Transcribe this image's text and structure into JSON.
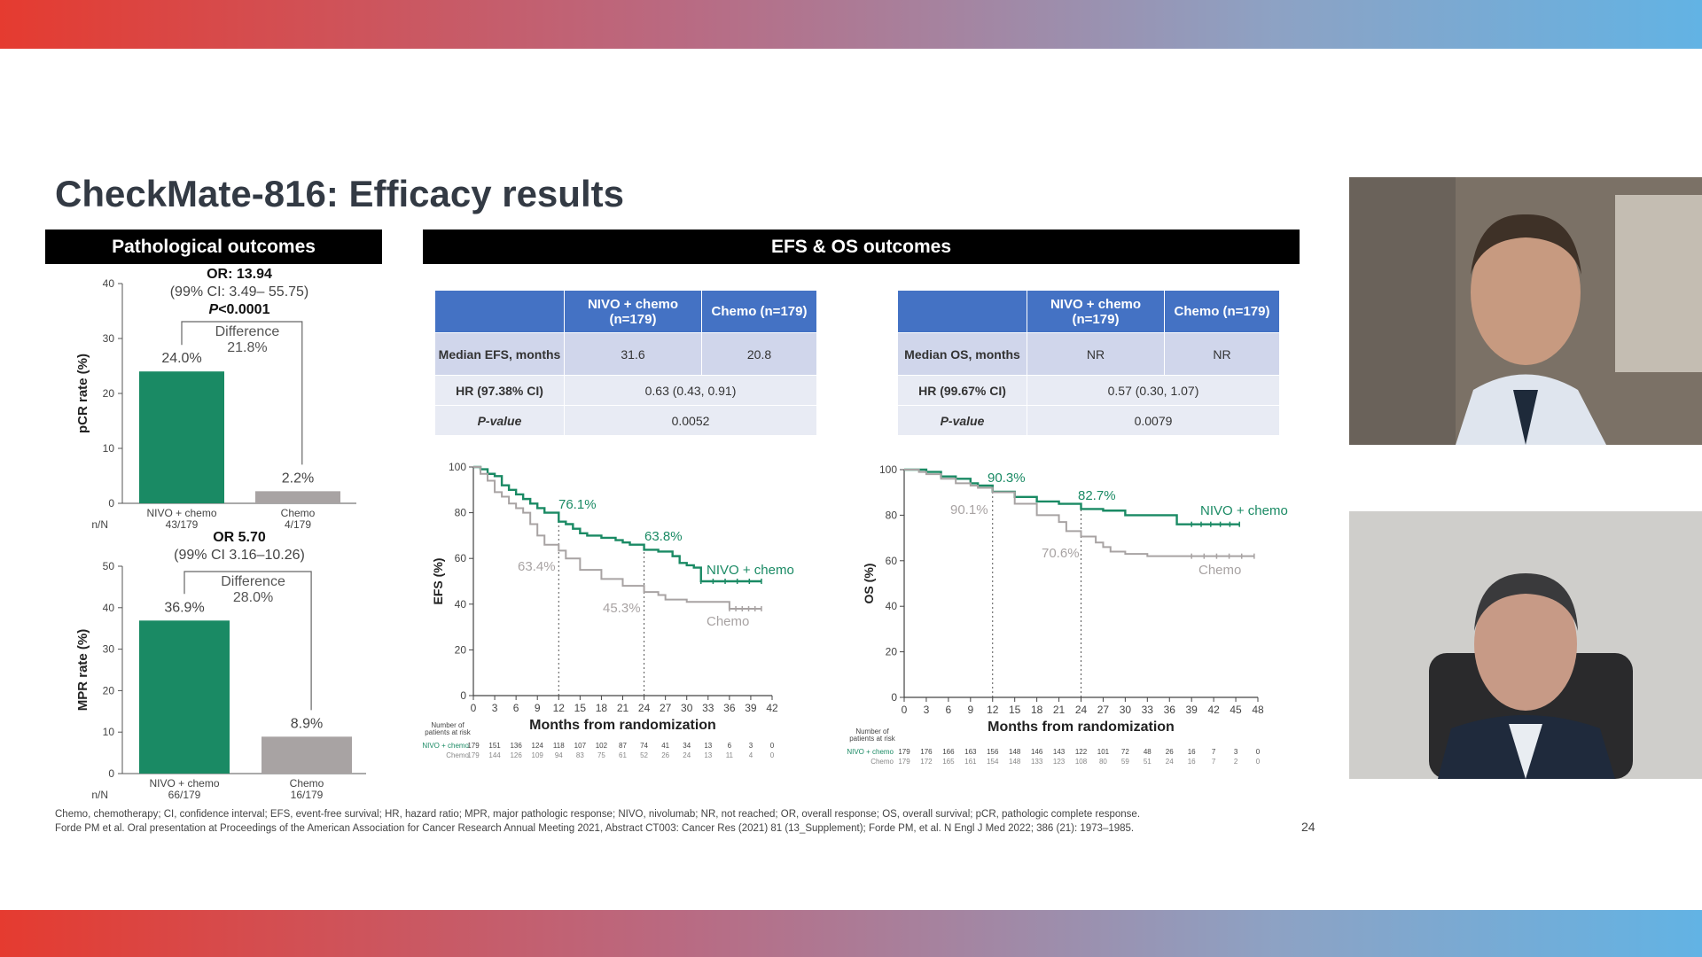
{
  "slide": {
    "title": "CheckMate-816: Efficacy results",
    "section_pathological": "Pathological outcomes",
    "section_efs_os": "EFS & OS outcomes",
    "page_number": "24",
    "footnote_line1": "Chemo, chemotherapy; CI, confidence interval; EFS, event-free survival; HR, hazard ratio; MPR, major pathologic response; NIVO, nivolumab; NR, not reached; OR, overall response; OS, overall survival; pCR, pathologic complete response.",
    "footnote_line2": "Forde PM et al. Oral presentation at Proceedings of the American Association for Cancer Research Annual Meeting 2021, Abstract CT003: Cancer Res (2021) 81 (13_Supplement); Forde PM, et al. N Engl J Med 2022; 386 (21): 1973–1985."
  },
  "efs_table": {
    "col1": "NIVO + chemo (n=179)",
    "col2": "Chemo (n=179)",
    "row1_label": "Median EFS, months",
    "row1_v1": "31.6",
    "row1_v2": "20.8",
    "row2_label": "HR (97.38% CI)",
    "row2_value": "0.63 (0.43, 0.91)",
    "row3_label": "P-value",
    "row3_value": "0.0052"
  },
  "os_table": {
    "col1": "NIVO + chemo (n=179)",
    "col2": "Chemo (n=179)",
    "row1_label": "Median OS, months",
    "row1_v1": "NR",
    "row1_v2": "NR",
    "row2_label": "HR (99.67% CI)",
    "row2_value": "0.57 (0.30, 1.07)",
    "row3_label": "P-value",
    "row3_value": "0.0079"
  },
  "colors": {
    "nivo": "#1a8a64",
    "chemo": "#a8a3a3",
    "table_header": "#4472c4"
  },
  "chart_data": [
    {
      "type": "bar",
      "ylabel": "pCR rate (%)",
      "ylim": [
        0,
        40
      ],
      "yticks": [
        0,
        10,
        20,
        30,
        40
      ],
      "categories": [
        "NIVO + chemo",
        "Chemo"
      ],
      "nn_label": "n/N",
      "nn": [
        "43/179",
        "4/179"
      ],
      "values": [
        24.0,
        2.2
      ],
      "value_labels": [
        "24.0%",
        "2.2%"
      ],
      "or_text": "OR: 13.94",
      "ci_text": "(99% CI: 3.49– 55.75)",
      "p_prefix": "P",
      "p_text": "<0.0001",
      "diff_label": "Difference",
      "diff_value": "21.8%"
    },
    {
      "type": "bar",
      "ylabel": "MPR rate (%)",
      "ylim": [
        0,
        50
      ],
      "yticks": [
        0,
        10,
        20,
        30,
        40,
        50
      ],
      "categories": [
        "NIVO + chemo",
        "Chemo"
      ],
      "nn_label": "n/N",
      "nn": [
        "66/179",
        "16/179"
      ],
      "values": [
        36.9,
        8.9
      ],
      "value_labels": [
        "36.9%",
        "8.9%"
      ],
      "or_text": "OR 5.70",
      "ci_text": "(99% CI 3.16–10.26)",
      "diff_label": "Difference",
      "diff_value": "28.0%"
    },
    {
      "type": "line",
      "ylabel": "EFS (%)",
      "xlabel": "Months from randomization",
      "xlim": [
        0,
        42
      ],
      "ylim": [
        0,
        100
      ],
      "xticks": [
        0,
        3,
        6,
        9,
        12,
        15,
        18,
        21,
        24,
        27,
        30,
        33,
        36,
        39,
        42
      ],
      "yticks": [
        0,
        20,
        40,
        60,
        80,
        100
      ],
      "series": [
        {
          "name": "NIVO + chemo",
          "x": [
            0,
            1,
            2,
            3,
            4,
            5,
            6,
            7,
            8,
            9,
            10,
            12,
            13,
            14,
            15,
            16,
            18,
            20,
            21,
            22,
            24,
            26,
            28,
            29,
            30,
            31,
            32,
            36,
            40.5
          ],
          "y": [
            100,
            99,
            97,
            96,
            92,
            90,
            88,
            86,
            84,
            82,
            80,
            76.1,
            75,
            73,
            71,
            70,
            69,
            68,
            67,
            66,
            63.8,
            63,
            61,
            58,
            57,
            56,
            50,
            50,
            50
          ]
        },
        {
          "name": "Chemo",
          "x": [
            0,
            1,
            2,
            3,
            4,
            5,
            6,
            7,
            8,
            9,
            10,
            12,
            13,
            15,
            18,
            21,
            24,
            26,
            27,
            30,
            33,
            36,
            38,
            40.5
          ],
          "y": [
            100,
            97,
            94,
            89,
            87,
            84,
            82,
            80,
            75,
            70,
            66,
            63.4,
            60,
            55,
            51,
            48,
            45.3,
            44,
            42,
            41,
            41,
            38,
            38,
            38
          ]
        }
      ],
      "annotations": [
        "76.1%",
        "63.8%",
        "63.4%",
        "45.3%"
      ],
      "risk_header": "Number of patients at risk",
      "risk_nivo_label": "NIVO + chemo",
      "risk_chemo_label": "Chemo",
      "risk_nivo": [
        "179",
        "151",
        "136",
        "124",
        "118",
        "107",
        "102",
        "87",
        "74",
        "41",
        "34",
        "13",
        "6",
        "3",
        "0"
      ],
      "risk_chemo": [
        "179",
        "144",
        "126",
        "109",
        "94",
        "83",
        "75",
        "61",
        "52",
        "26",
        "24",
        "13",
        "11",
        "4",
        "0"
      ]
    },
    {
      "type": "line",
      "ylabel": "OS (%)",
      "xlabel": "Months from randomization",
      "xlim": [
        0,
        48
      ],
      "ylim": [
        0,
        100
      ],
      "xticks": [
        0,
        3,
        6,
        9,
        12,
        15,
        18,
        21,
        24,
        27,
        30,
        33,
        36,
        39,
        42,
        45,
        48
      ],
      "yticks": [
        0,
        20,
        40,
        60,
        80,
        100
      ],
      "series": [
        {
          "name": "NIVO + chemo",
          "x": [
            0,
            2,
            3,
            5,
            7,
            9,
            10,
            12,
            15,
            18,
            21,
            24,
            27,
            30,
            33,
            36,
            37,
            39,
            42,
            45.5
          ],
          "y": [
            100,
            100,
            99,
            97,
            96,
            94,
            93,
            90.3,
            88,
            86,
            85,
            82.7,
            82,
            80,
            80,
            80,
            76,
            76,
            76,
            76
          ]
        },
        {
          "name": "Chemo",
          "x": [
            0,
            2,
            3,
            5,
            7,
            9,
            10,
            12,
            15,
            18,
            21,
            22,
            24,
            26,
            27,
            28,
            30,
            33,
            36,
            39,
            42,
            47.5
          ],
          "y": [
            100,
            99,
            98,
            96,
            94,
            93,
            92,
            90.1,
            85,
            80,
            77,
            73,
            70.6,
            68,
            66,
            64,
            63,
            62,
            62,
            62,
            62,
            62
          ]
        }
      ],
      "annotations": [
        "90.3%",
        "82.7%",
        "90.1%",
        "70.6%"
      ],
      "risk_header": "Number of patients at risk",
      "risk_nivo_label": "NIVO + chemo",
      "risk_chemo_label": "Chemo",
      "risk_nivo": [
        "179",
        "176",
        "166",
        "163",
        "156",
        "148",
        "146",
        "143",
        "122",
        "101",
        "72",
        "48",
        "26",
        "16",
        "7",
        "3",
        "0"
      ],
      "risk_chemo": [
        "179",
        "172",
        "165",
        "161",
        "154",
        "148",
        "133",
        "123",
        "108",
        "80",
        "59",
        "51",
        "24",
        "16",
        "7",
        "2",
        "0"
      ]
    }
  ]
}
